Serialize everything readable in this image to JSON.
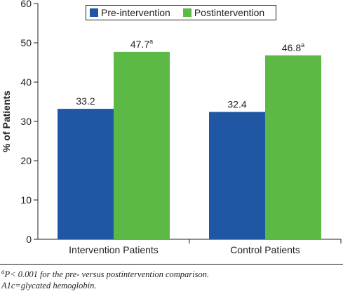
{
  "chart_data": {
    "type": "bar",
    "ylabel": "% of Patients",
    "xlabel": "",
    "ylim": [
      0,
      60
    ],
    "yticks": [
      0,
      10,
      20,
      30,
      40,
      50,
      60
    ],
    "categories": [
      "Intervention Patients",
      "Control Patients"
    ],
    "series": [
      {
        "name": "Pre-intervention",
        "values": [
          33.2,
          32.4
        ],
        "labels": [
          "33.2",
          "32.4"
        ],
        "color": "#1f57a4"
      },
      {
        "name": "Postintervention",
        "values": [
          47.7,
          46.8
        ],
        "labels": [
          "47.7",
          "46.8"
        ],
        "superscripts": [
          "a",
          "a"
        ],
        "color": "#5cb946"
      }
    ],
    "legend": "top-center",
    "grid": false
  },
  "footnotes": {
    "line1_marker": "a",
    "line1_text": "P< 0.001 for the pre- versus postintervention comparison.",
    "line2_text": "A1c=glycated hemoglobin."
  }
}
